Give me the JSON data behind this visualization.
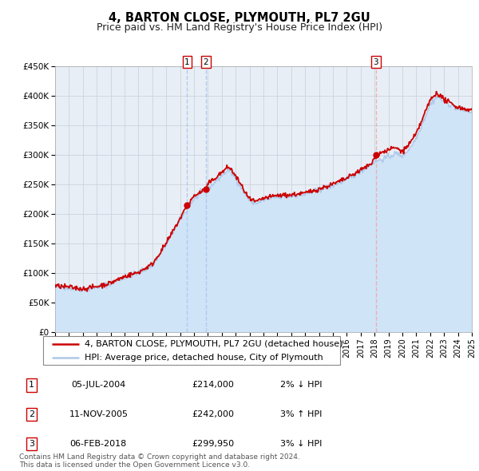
{
  "title": "4, BARTON CLOSE, PLYMOUTH, PL7 2GU",
  "subtitle": "Price paid vs. HM Land Registry's House Price Index (HPI)",
  "ylim": [
    0,
    450000
  ],
  "yticks": [
    0,
    50000,
    100000,
    150000,
    200000,
    250000,
    300000,
    350000,
    400000,
    450000
  ],
  "ytick_labels": [
    "£0",
    "£50K",
    "£100K",
    "£150K",
    "£200K",
    "£250K",
    "£300K",
    "£350K",
    "£400K",
    "£450K"
  ],
  "hpi_color": "#aec8e8",
  "hpi_fill_color": "#d0e4f7",
  "price_color": "#cc0000",
  "marker_color": "#cc0000",
  "bg_color": "#ffffff",
  "chart_bg_color": "#e8eef5",
  "grid_color": "#c8d4e0",
  "sale_dates_num": [
    2004.507,
    2005.863,
    2018.096
  ],
  "sale_prices": [
    214000,
    242000,
    299950
  ],
  "sale_labels": [
    "1",
    "2",
    "3"
  ],
  "sale_vline_colors": [
    "#aac8f0",
    "#aac8f0",
    "#f0aaaa"
  ],
  "sale_hpi_pct": [
    "2% ↓ HPI",
    "3% ↑ HPI",
    "3% ↓ HPI"
  ],
  "sale_date_labels": [
    "05-JUL-2004",
    "11-NOV-2005",
    "06-FEB-2018"
  ],
  "sale_price_labels": [
    "£214,000",
    "£242,000",
    "£299,950"
  ],
  "legend_line1": "4, BARTON CLOSE, PLYMOUTH, PL7 2GU (detached house)",
  "legend_line2": "HPI: Average price, detached house, City of Plymouth",
  "footer": "Contains HM Land Registry data © Crown copyright and database right 2024.\nThis data is licensed under the Open Government Licence v3.0.",
  "title_fontsize": 10.5,
  "subtitle_fontsize": 9,
  "tick_fontsize": 7.5,
  "legend_fontsize": 8,
  "table_fontsize": 8,
  "footer_fontsize": 6.5
}
